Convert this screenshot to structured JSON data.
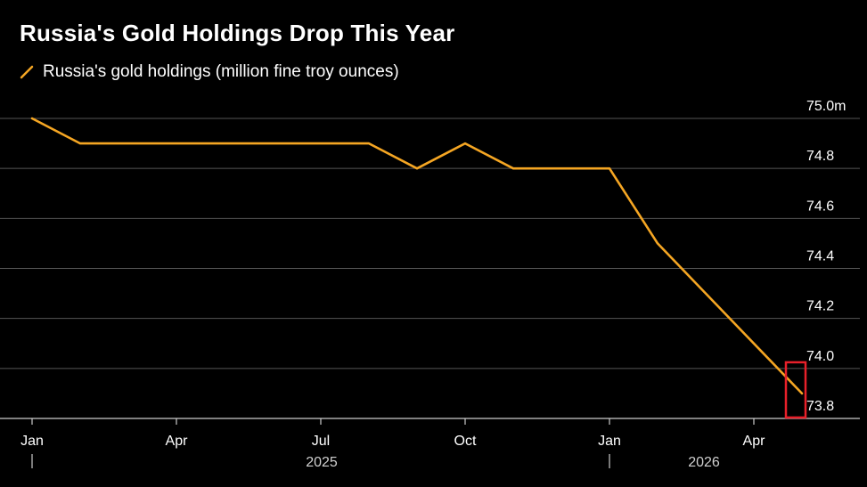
{
  "title": "Russia's Gold Holdings Drop This Year",
  "legend": {
    "label": "Russia's gold holdings (million fine troy ounces)"
  },
  "colors": {
    "line": "#f5a623",
    "grid": "#555555",
    "highlight": "#e8202a",
    "axis": "#cccccc"
  },
  "chart_data": {
    "type": "line",
    "title": "Russia's Gold Holdings Drop This Year",
    "series": [
      {
        "name": "Russia's gold holdings (million fine troy ounces)",
        "x": [
          "2025-01",
          "2025-02",
          "2025-03",
          "2025-04",
          "2025-05",
          "2025-06",
          "2025-07",
          "2025-08",
          "2025-09",
          "2025-10",
          "2025-11",
          "2025-12",
          "2026-01",
          "2026-02",
          "2026-03",
          "2026-04",
          "2026-05"
        ],
        "values": [
          75.0,
          74.9,
          74.9,
          74.9,
          74.9,
          74.9,
          74.9,
          74.9,
          74.8,
          74.9,
          74.8,
          74.8,
          74.8,
          74.5,
          74.3,
          74.1,
          73.9
        ]
      }
    ],
    "ylim": [
      73.8,
      75.0
    ],
    "yticks": [
      {
        "value": 75.0,
        "label": "75.0m"
      },
      {
        "value": 74.8,
        "label": "74.8"
      },
      {
        "value": 74.6,
        "label": "74.6"
      },
      {
        "value": 74.4,
        "label": "74.4"
      },
      {
        "value": 74.2,
        "label": "74.2"
      },
      {
        "value": 74.0,
        "label": "74.0"
      },
      {
        "value": 73.8,
        "label": "73.8"
      }
    ],
    "xticks": [
      {
        "x": "2025-01",
        "label": "Jan"
      },
      {
        "x": "2025-04",
        "label": "Apr"
      },
      {
        "x": "2025-07",
        "label": "Jul"
      },
      {
        "x": "2025-10",
        "label": "Oct"
      },
      {
        "x": "2026-01",
        "label": "Jan"
      },
      {
        "x": "2026-04",
        "label": "Apr"
      }
    ],
    "years": [
      {
        "x": "2025-01",
        "label": "2025"
      },
      {
        "x": "2026-01",
        "label": "2026"
      }
    ],
    "highlight": {
      "x": "2026-05",
      "value": 73.9
    },
    "grid": true,
    "legend_position": "top-left"
  }
}
